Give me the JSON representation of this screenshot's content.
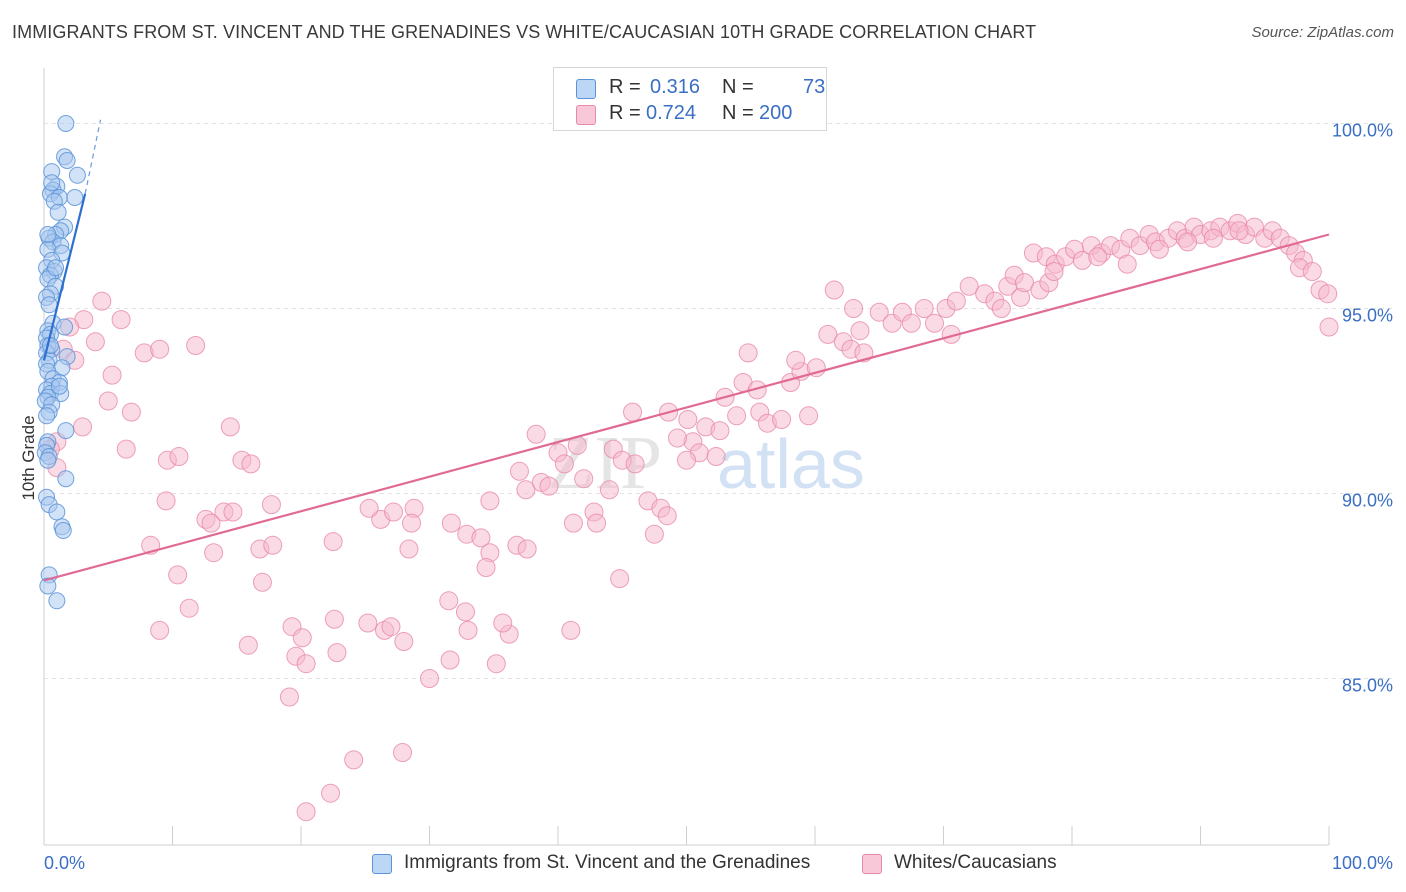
{
  "header": {
    "title": "IMMIGRANTS FROM ST. VINCENT AND THE GRENADINES VS WHITE/CAUCASIAN 10TH GRADE CORRELATION CHART",
    "source": "Source: ZipAtlas.com"
  },
  "legend": {
    "r_label": "R =",
    "n_label": "N =",
    "rows": [
      {
        "r": "0.316",
        "n": "73"
      },
      {
        "r": "0.724",
        "n": "200"
      }
    ]
  },
  "watermark": {
    "part1": "ZIP",
    "part2": "atlas"
  },
  "colors": {
    "blue_fill": "#a8c8f0",
    "blue_stroke": "#5b93d8",
    "blue_line": "#2f6fd0",
    "pink_fill": "#f5b8cc",
    "pink_stroke": "#e88aa8",
    "pink_line": "#e06a95",
    "axis_value": "#3a6fc4"
  },
  "chart_data": {
    "type": "scatter",
    "title": "IMMIGRANTS FROM ST. VINCENT AND THE GRENADINES VS WHITE/CAUCASIAN 10TH GRADE CORRELATION CHART",
    "xlabel": "",
    "ylabel": "10th Grade",
    "xlim": [
      0,
      100
    ],
    "ylim": [
      80.5,
      101.5
    ],
    "x_tick_labels": [
      "0.0%",
      "100.0%"
    ],
    "y_ticks": [
      85,
      90,
      95,
      100
    ],
    "y_tick_labels": [
      "85.0%",
      "90.0%",
      "95.0%",
      "100.0%"
    ],
    "grid": true,
    "legend_position": "bottom",
    "series": [
      {
        "name": "Immigrants from St. Vincent and the Grenadines",
        "r": 0.316,
        "n": 73,
        "trend": {
          "x": [
            0.0,
            3.2
          ],
          "y": [
            93.6,
            98.1
          ]
        },
        "trend_ext": {
          "x": [
            3.2,
            4.4
          ],
          "y": [
            98.1,
            100.1
          ]
        },
        "points": [
          [
            1.7,
            100.0
          ],
          [
            1.6,
            99.1
          ],
          [
            1.8,
            99.0
          ],
          [
            0.6,
            98.7
          ],
          [
            2.6,
            98.6
          ],
          [
            1.0,
            98.3
          ],
          [
            0.7,
            98.2
          ],
          [
            0.5,
            98.1
          ],
          [
            1.2,
            98.0
          ],
          [
            2.4,
            98.0
          ],
          [
            0.8,
            97.9
          ],
          [
            1.1,
            97.6
          ],
          [
            1.6,
            97.2
          ],
          [
            1.3,
            97.1
          ],
          [
            0.9,
            97.0
          ],
          [
            0.4,
            96.9
          ],
          [
            0.7,
            96.8
          ],
          [
            1.3,
            96.7
          ],
          [
            0.3,
            96.6
          ],
          [
            1.4,
            96.5
          ],
          [
            0.6,
            96.3
          ],
          [
            0.2,
            96.1
          ],
          [
            0.8,
            96.0
          ],
          [
            0.5,
            95.9
          ],
          [
            0.3,
            95.8
          ],
          [
            0.9,
            95.6
          ],
          [
            0.5,
            95.4
          ],
          [
            0.2,
            95.3
          ],
          [
            0.4,
            95.1
          ],
          [
            0.7,
            94.6
          ],
          [
            1.6,
            94.5
          ],
          [
            0.3,
            94.4
          ],
          [
            0.5,
            94.3
          ],
          [
            0.2,
            94.2
          ],
          [
            0.3,
            94.0
          ],
          [
            0.6,
            93.9
          ],
          [
            0.2,
            93.8
          ],
          [
            1.8,
            93.7
          ],
          [
            0.4,
            93.6
          ],
          [
            0.2,
            93.5
          ],
          [
            1.4,
            93.4
          ],
          [
            0.3,
            93.3
          ],
          [
            0.7,
            93.1
          ],
          [
            1.2,
            93.0
          ],
          [
            0.6,
            92.9
          ],
          [
            0.2,
            92.8
          ],
          [
            0.5,
            92.7
          ],
          [
            1.3,
            92.7
          ],
          [
            0.3,
            92.6
          ],
          [
            0.1,
            92.5
          ],
          [
            0.6,
            92.4
          ],
          [
            0.4,
            92.2
          ],
          [
            0.2,
            92.1
          ],
          [
            1.7,
            91.7
          ],
          [
            0.3,
            91.4
          ],
          [
            0.2,
            91.3
          ],
          [
            0.1,
            91.1
          ],
          [
            0.4,
            91.0
          ],
          [
            0.3,
            90.9
          ],
          [
            1.7,
            90.4
          ],
          [
            0.2,
            89.9
          ],
          [
            0.4,
            89.7
          ],
          [
            1.0,
            89.5
          ],
          [
            1.4,
            89.1
          ],
          [
            1.5,
            89.0
          ],
          [
            0.4,
            87.8
          ],
          [
            0.3,
            87.5
          ],
          [
            1.0,
            87.1
          ],
          [
            0.6,
            98.4
          ],
          [
            0.3,
            97.0
          ],
          [
            0.9,
            96.1
          ],
          [
            1.2,
            92.9
          ],
          [
            0.5,
            94.0
          ]
        ]
      },
      {
        "name": "Whites/Caucasians",
        "r": 0.724,
        "n": 200,
        "trend": {
          "x": [
            0.0,
            100.0
          ],
          "y": [
            87.65,
            97.0
          ]
        },
        "points": [
          [
            4.5,
            95.2
          ],
          [
            3.1,
            94.7
          ],
          [
            6.0,
            94.7
          ],
          [
            2.0,
            94.5
          ],
          [
            1.5,
            93.9
          ],
          [
            4.0,
            94.1
          ],
          [
            7.8,
            93.8
          ],
          [
            9.0,
            93.9
          ],
          [
            11.8,
            94.0
          ],
          [
            5.3,
            93.2
          ],
          [
            2.4,
            93.6
          ],
          [
            5.0,
            92.5
          ],
          [
            6.8,
            92.2
          ],
          [
            3.0,
            91.8
          ],
          [
            1.0,
            91.4
          ],
          [
            0.5,
            91.2
          ],
          [
            6.4,
            91.2
          ],
          [
            1.0,
            90.7
          ],
          [
            9.6,
            90.9
          ],
          [
            10.5,
            91.0
          ],
          [
            14.5,
            91.8
          ],
          [
            15.4,
            90.9
          ],
          [
            16.1,
            90.8
          ],
          [
            9.5,
            89.8
          ],
          [
            12.6,
            89.3
          ],
          [
            13.0,
            89.2
          ],
          [
            14.0,
            89.5
          ],
          [
            14.7,
            89.5
          ],
          [
            17.7,
            89.7
          ],
          [
            8.3,
            88.6
          ],
          [
            13.2,
            88.4
          ],
          [
            16.8,
            88.5
          ],
          [
            17.8,
            88.6
          ],
          [
            17.0,
            87.6
          ],
          [
            10.4,
            87.8
          ],
          [
            11.3,
            86.9
          ],
          [
            9.0,
            86.3
          ],
          [
            15.9,
            85.9
          ],
          [
            19.3,
            86.4
          ],
          [
            20.1,
            86.1
          ],
          [
            19.6,
            85.6
          ],
          [
            20.4,
            85.4
          ],
          [
            22.6,
            86.6
          ],
          [
            22.8,
            85.7
          ],
          [
            19.1,
            84.5
          ],
          [
            28.8,
            89.6
          ],
          [
            26.2,
            89.3
          ],
          [
            28.6,
            89.2
          ],
          [
            27.2,
            89.5
          ],
          [
            31.7,
            89.2
          ],
          [
            32.9,
            88.9
          ],
          [
            28.4,
            88.5
          ],
          [
            22.5,
            88.7
          ],
          [
            25.3,
            89.6
          ],
          [
            34.7,
            89.8
          ],
          [
            31.5,
            87.1
          ],
          [
            32.8,
            86.8
          ],
          [
            33.0,
            86.3
          ],
          [
            26.5,
            86.3
          ],
          [
            27.0,
            86.4
          ],
          [
            28.0,
            86.0
          ],
          [
            25.2,
            86.5
          ],
          [
            31.6,
            85.5
          ],
          [
            35.2,
            85.4
          ],
          [
            38.3,
            91.6
          ],
          [
            40.0,
            91.1
          ],
          [
            41.5,
            91.3
          ],
          [
            37.0,
            90.6
          ],
          [
            38.7,
            90.3
          ],
          [
            39.3,
            90.2
          ],
          [
            44.3,
            91.2
          ],
          [
            45.0,
            90.9
          ],
          [
            46.0,
            90.8
          ],
          [
            40.5,
            90.8
          ],
          [
            42.0,
            90.4
          ],
          [
            44.0,
            90.1
          ],
          [
            42.8,
            89.5
          ],
          [
            41.2,
            89.2
          ],
          [
            43.0,
            89.2
          ],
          [
            47.0,
            89.8
          ],
          [
            48.0,
            89.6
          ],
          [
            48.5,
            89.4
          ],
          [
            47.5,
            88.9
          ],
          [
            37.5,
            90.1
          ],
          [
            34.0,
            88.8
          ],
          [
            34.7,
            88.4
          ],
          [
            36.8,
            88.6
          ],
          [
            37.6,
            88.5
          ],
          [
            34.4,
            88.0
          ],
          [
            44.8,
            87.7
          ],
          [
            41.0,
            86.3
          ],
          [
            36.2,
            86.2
          ],
          [
            35.7,
            86.5
          ],
          [
            30.0,
            85.0
          ],
          [
            27.9,
            83.0
          ],
          [
            24.1,
            82.8
          ],
          [
            22.3,
            81.9
          ],
          [
            20.4,
            81.4
          ],
          [
            45.8,
            92.2
          ],
          [
            48.6,
            92.2
          ],
          [
            50.1,
            92.0
          ],
          [
            51.5,
            91.8
          ],
          [
            50.5,
            91.4
          ],
          [
            52.6,
            91.7
          ],
          [
            51.0,
            91.1
          ],
          [
            50.0,
            90.9
          ],
          [
            53.9,
            92.1
          ],
          [
            49.3,
            91.5
          ],
          [
            52.3,
            91.0
          ],
          [
            54.4,
            93.0
          ],
          [
            53.0,
            92.6
          ],
          [
            55.5,
            92.8
          ],
          [
            55.7,
            92.2
          ],
          [
            56.3,
            91.9
          ],
          [
            57.4,
            92.0
          ],
          [
            54.8,
            93.8
          ],
          [
            58.1,
            93.0
          ],
          [
            58.9,
            93.3
          ],
          [
            58.5,
            93.6
          ],
          [
            60.1,
            93.4
          ],
          [
            59.5,
            92.1
          ],
          [
            61.0,
            94.3
          ],
          [
            62.2,
            94.1
          ],
          [
            63.5,
            94.4
          ],
          [
            62.8,
            93.9
          ],
          [
            63.8,
            93.8
          ],
          [
            65.0,
            94.9
          ],
          [
            66.0,
            94.6
          ],
          [
            66.8,
            94.9
          ],
          [
            67.5,
            94.6
          ],
          [
            68.5,
            95.0
          ],
          [
            69.3,
            94.6
          ],
          [
            70.2,
            95.0
          ],
          [
            71.0,
            95.2
          ],
          [
            70.6,
            94.3
          ],
          [
            72.0,
            95.6
          ],
          [
            73.2,
            95.4
          ],
          [
            74.0,
            95.2
          ],
          [
            75.0,
            95.6
          ],
          [
            76.0,
            95.3
          ],
          [
            75.5,
            95.9
          ],
          [
            76.3,
            95.7
          ],
          [
            77.5,
            95.5
          ],
          [
            74.5,
            95.0
          ],
          [
            77.0,
            96.5
          ],
          [
            78.0,
            96.4
          ],
          [
            78.7,
            96.2
          ],
          [
            79.5,
            96.4
          ],
          [
            80.2,
            96.6
          ],
          [
            80.8,
            96.3
          ],
          [
            81.5,
            96.7
          ],
          [
            82.3,
            96.5
          ],
          [
            83.0,
            96.7
          ],
          [
            83.8,
            96.6
          ],
          [
            84.5,
            96.9
          ],
          [
            85.3,
            96.7
          ],
          [
            86.0,
            97.0
          ],
          [
            86.5,
            96.8
          ],
          [
            87.5,
            96.9
          ],
          [
            88.2,
            97.1
          ],
          [
            88.8,
            96.9
          ],
          [
            89.5,
            97.2
          ],
          [
            90.0,
            97.0
          ],
          [
            90.8,
            97.1
          ],
          [
            91.5,
            97.2
          ],
          [
            92.3,
            97.1
          ],
          [
            92.9,
            97.3
          ],
          [
            93.5,
            97.0
          ],
          [
            94.2,
            97.2
          ],
          [
            95.0,
            96.9
          ],
          [
            95.6,
            97.1
          ],
          [
            96.2,
            96.9
          ],
          [
            96.9,
            96.7
          ],
          [
            97.4,
            96.5
          ],
          [
            98.0,
            96.3
          ],
          [
            97.7,
            96.1
          ],
          [
            98.7,
            96.0
          ],
          [
            99.3,
            95.5
          ],
          [
            99.9,
            95.4
          ],
          [
            100.0,
            94.5
          ],
          [
            61.5,
            95.5
          ],
          [
            63.0,
            95.0
          ],
          [
            78.2,
            95.7
          ],
          [
            78.6,
            96.0
          ],
          [
            82.0,
            96.4
          ],
          [
            84.3,
            96.2
          ],
          [
            86.8,
            96.6
          ],
          [
            89.0,
            96.8
          ],
          [
            91.0,
            96.9
          ],
          [
            93.0,
            97.1
          ]
        ]
      }
    ]
  },
  "bottom_legend": [
    {
      "label": "Immigrants from St. Vincent and the Grenadines"
    },
    {
      "label": "Whites/Caucasians"
    }
  ]
}
